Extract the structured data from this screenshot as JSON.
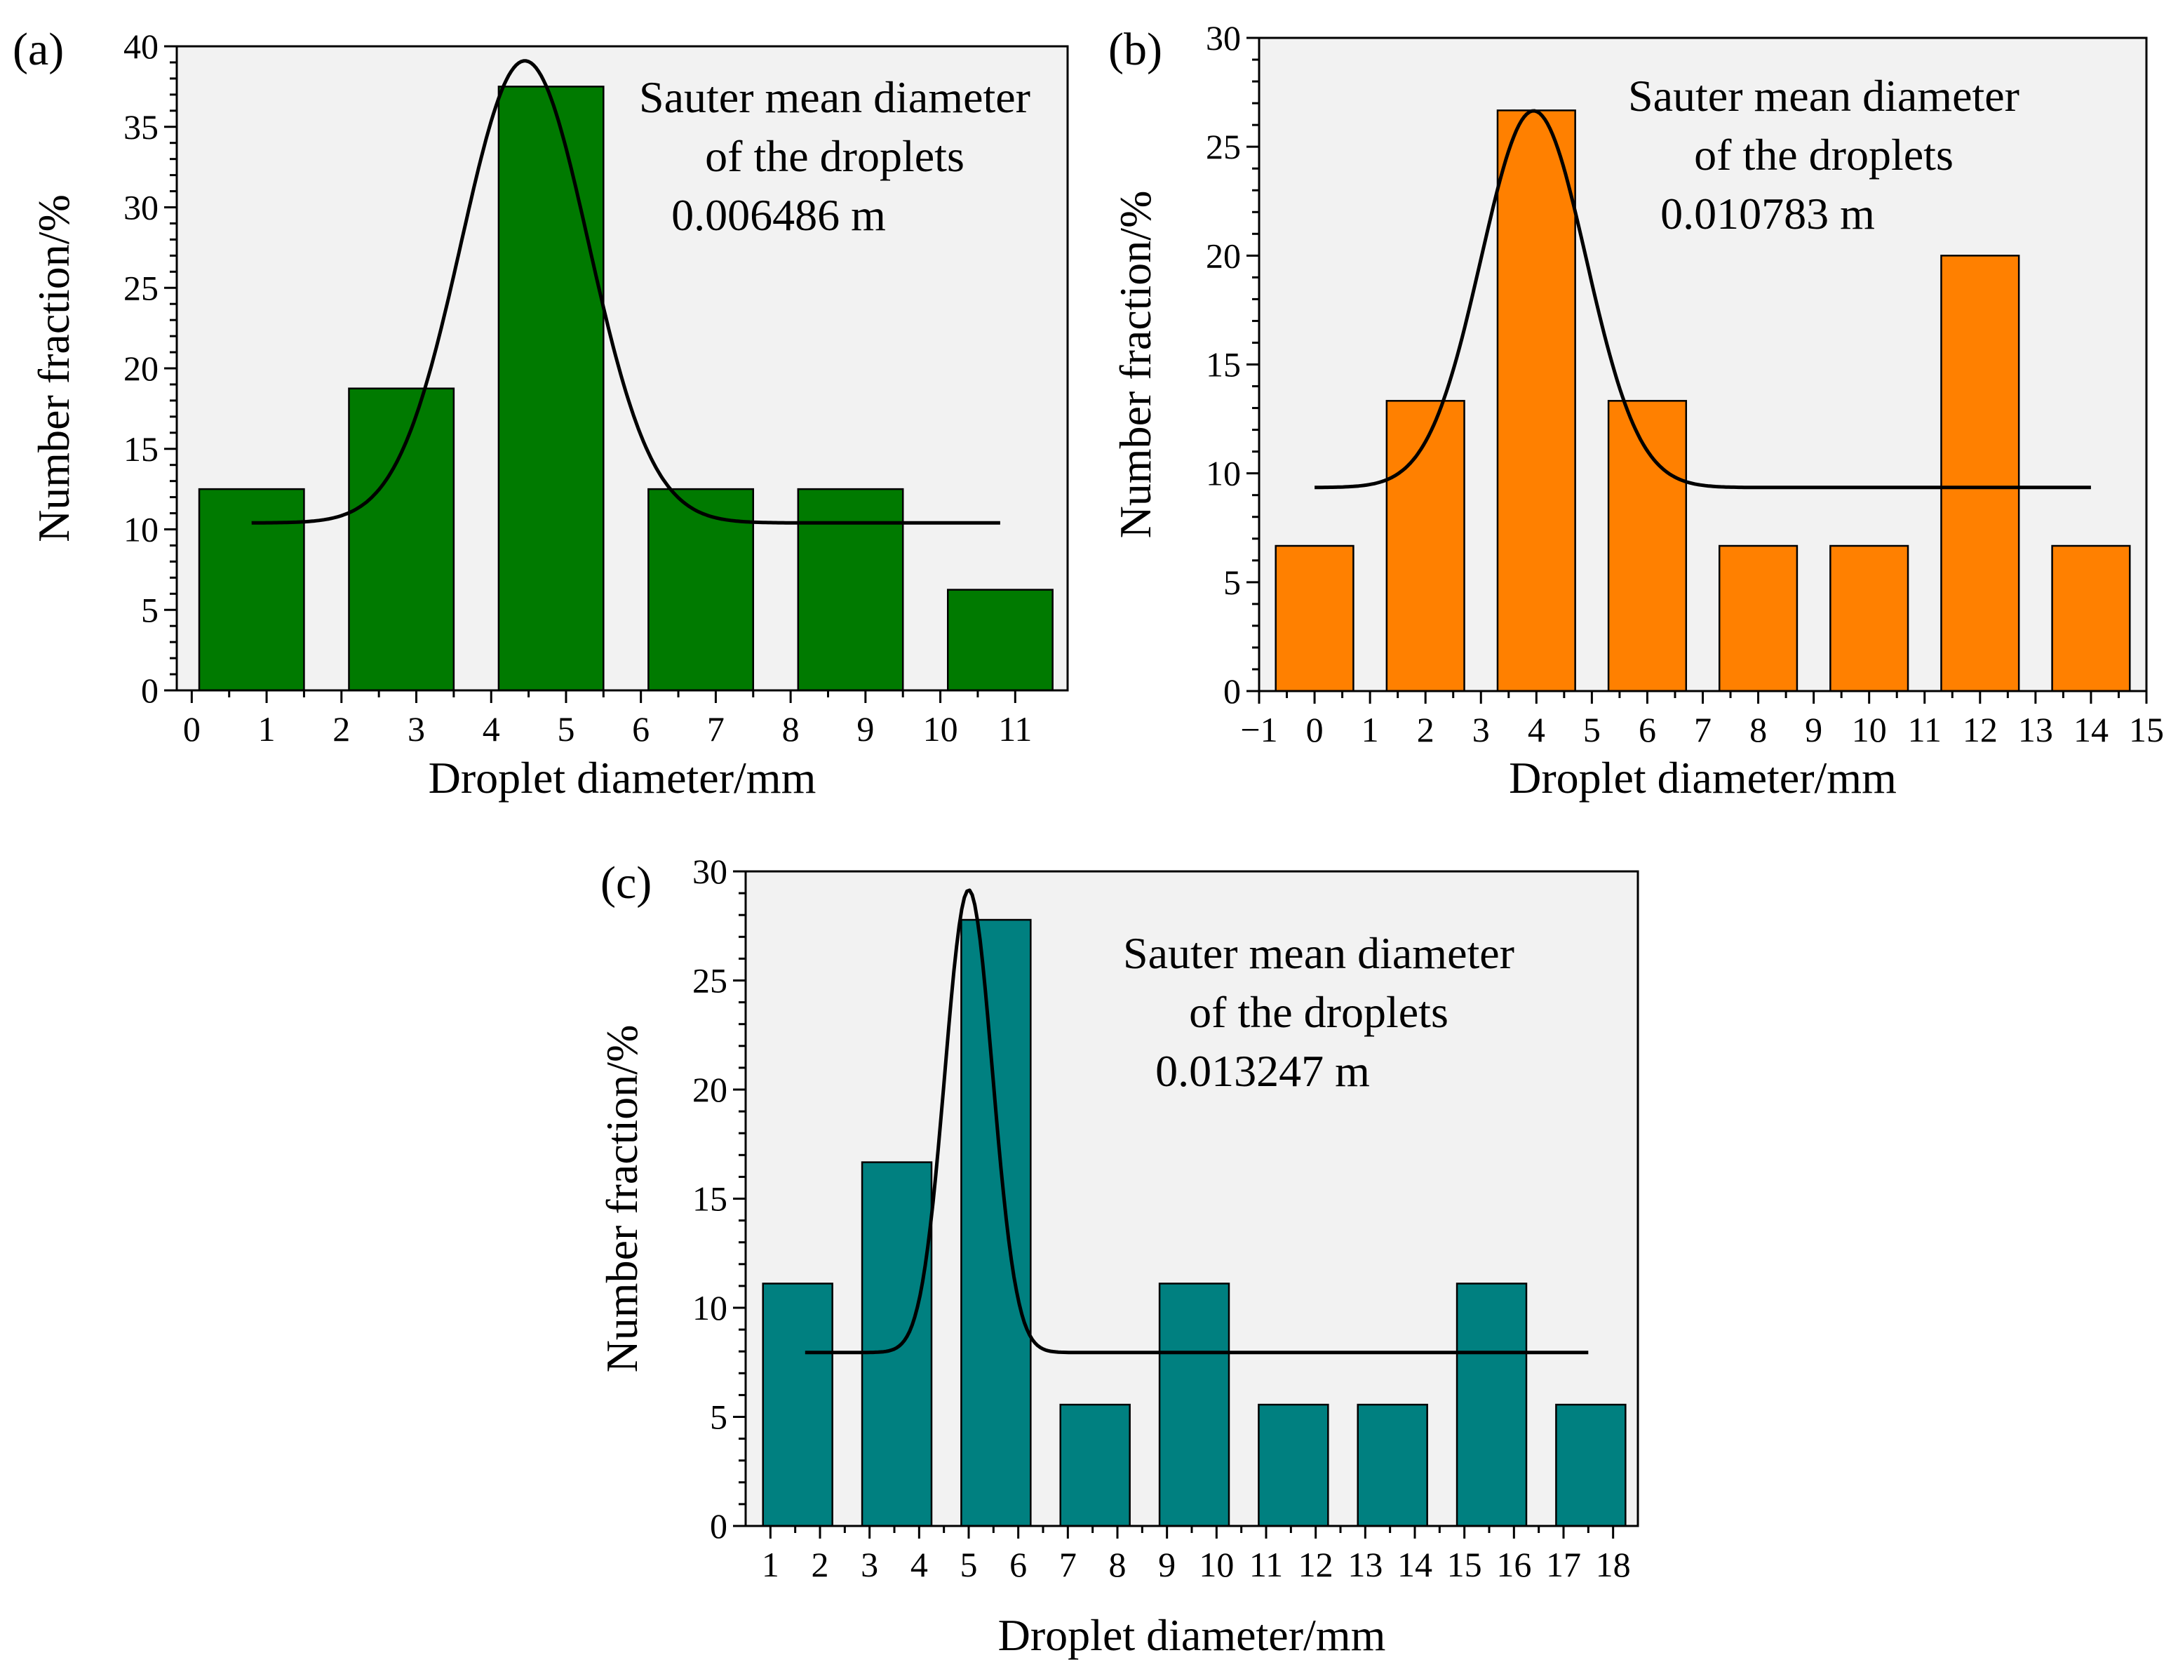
{
  "chart_data": [
    {
      "id": "a",
      "type": "bar",
      "panel_label": "(a)",
      "xlabel": "Droplet diameter/mm",
      "ylabel": "Number fraction/%",
      "annotation": [
        "Sauter mean diameter",
        "of the droplets",
        "0.006486 m"
      ],
      "bar_color": "#007a00",
      "xlim": [
        -0.2,
        11.7
      ],
      "ylim": [
        0,
        40
      ],
      "xticks": [
        0,
        1,
        2,
        3,
        4,
        5,
        6,
        7,
        8,
        9,
        10,
        11
      ],
      "xtick_labels": [
        "0",
        "1",
        "2",
        "3",
        "4",
        "5",
        "6",
        "7",
        "8",
        "9",
        "10",
        "11"
      ],
      "yticks": [
        0,
        5,
        10,
        15,
        20,
        25,
        30,
        35,
        40
      ],
      "ytick_labels": [
        "0",
        "5",
        "10",
        "15",
        "20",
        "25",
        "30",
        "35",
        "40"
      ],
      "bars": [
        {
          "from": 0.1,
          "to": 1.5,
          "value": 12.5
        },
        {
          "from": 2.1,
          "to": 3.5,
          "value": 18.75
        },
        {
          "from": 4.1,
          "to": 5.5,
          "value": 37.5
        },
        {
          "from": 6.1,
          "to": 7.5,
          "value": 12.5
        },
        {
          "from": 8.1,
          "to": 9.5,
          "value": 12.5
        },
        {
          "from": 10.1,
          "to": 11.5,
          "value": 6.25
        }
      ],
      "fit": {
        "type": "gaussian",
        "baseline": 10.4,
        "amplitude": 28.7,
        "center": 4.45,
        "sigma": 0.85,
        "x_start": 0.8,
        "x_end": 10.8
      }
    },
    {
      "id": "b",
      "type": "bar",
      "panel_label": "(b)",
      "xlabel": "Droplet diameter/mm",
      "ylabel": "Number fraction/%",
      "annotation": [
        "Sauter mean diameter",
        "of the droplets",
        "0.010783 m"
      ],
      "bar_color": "#ff8000",
      "xlim": [
        -1,
        15
      ],
      "ylim": [
        0,
        30
      ],
      "xticks": [
        -1,
        0,
        1,
        2,
        3,
        4,
        5,
        6,
        7,
        8,
        9,
        10,
        11,
        12,
        13,
        14,
        15
      ],
      "xtick_labels": [
        "−1",
        "0",
        "1",
        "2",
        "3",
        "4",
        "5",
        "6",
        "7",
        "8",
        "9",
        "10",
        "11",
        "12",
        "13",
        "14",
        "15"
      ],
      "yticks": [
        0,
        5,
        10,
        15,
        20,
        25,
        30
      ],
      "ytick_labels": [
        "0",
        "5",
        "10",
        "15",
        "20",
        "25",
        "30"
      ],
      "bars": [
        {
          "from": -0.7,
          "to": 0.7,
          "value": 6.67
        },
        {
          "from": 1.3,
          "to": 2.7,
          "value": 13.33
        },
        {
          "from": 3.3,
          "to": 4.7,
          "value": 26.67
        },
        {
          "from": 5.3,
          "to": 6.7,
          "value": 13.33
        },
        {
          "from": 7.3,
          "to": 8.7,
          "value": 6.67
        },
        {
          "from": 9.3,
          "to": 10.7,
          "value": 6.67
        },
        {
          "from": 11.3,
          "to": 12.7,
          "value": 20.0
        },
        {
          "from": 13.3,
          "to": 14.7,
          "value": 6.67
        }
      ],
      "fit": {
        "type": "gaussian",
        "baseline": 9.35,
        "amplitude": 17.3,
        "center": 3.95,
        "sigma": 0.95,
        "x_start": 0.0,
        "x_end": 14.0
      }
    },
    {
      "id": "c",
      "type": "bar",
      "panel_label": "(c)",
      "xlabel": "Droplet diameter/mm",
      "ylabel": "Number fraction/%",
      "annotation": [
        "Sauter mean diameter",
        "of the droplets",
        "0.013247 m"
      ],
      "bar_color": "#008080",
      "xlim": [
        0.5,
        18.5
      ],
      "ylim": [
        0,
        30
      ],
      "xticks": [
        1,
        2,
        3,
        4,
        5,
        6,
        7,
        8,
        9,
        10,
        11,
        12,
        13,
        14,
        15,
        16,
        17,
        18
      ],
      "xtick_labels": [
        "1",
        "2",
        "3",
        "4",
        "5",
        "6",
        "7",
        "8",
        "9",
        "10",
        "11",
        "12",
        "13",
        "14",
        "15",
        "16",
        "17",
        "18"
      ],
      "yticks": [
        0,
        5,
        10,
        15,
        20,
        25,
        30
      ],
      "ytick_labels": [
        "0",
        "5",
        "10",
        "15",
        "20",
        "25",
        "30"
      ],
      "bars": [
        {
          "from": 0.85,
          "to": 2.25,
          "value": 11.11
        },
        {
          "from": 2.85,
          "to": 4.25,
          "value": 16.67
        },
        {
          "from": 4.85,
          "to": 6.25,
          "value": 27.78
        },
        {
          "from": 6.85,
          "to": 8.25,
          "value": 5.56
        },
        {
          "from": 8.85,
          "to": 10.25,
          "value": 11.11
        },
        {
          "from": 10.85,
          "to": 12.25,
          "value": 5.56
        },
        {
          "from": 12.85,
          "to": 14.25,
          "value": 5.56
        },
        {
          "from": 14.85,
          "to": 16.25,
          "value": 11.11
        },
        {
          "from": 16.85,
          "to": 18.25,
          "value": 5.56
        }
      ],
      "fit": {
        "type": "gaussian",
        "baseline": 7.95,
        "amplitude": 21.2,
        "center": 5.0,
        "sigma": 0.48,
        "x_start": 1.7,
        "x_end": 17.5
      }
    }
  ]
}
